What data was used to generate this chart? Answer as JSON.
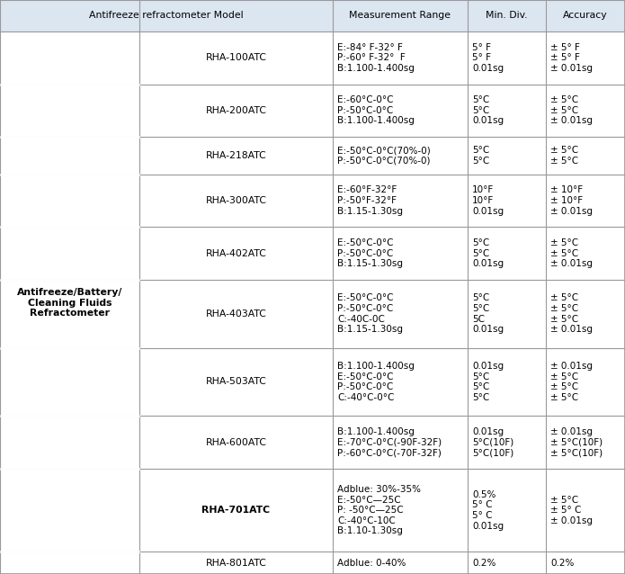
{
  "col_headers": [
    "Antifreeze refractometer Model",
    "Measurement Range",
    "Min. Div.",
    "Accuracy"
  ],
  "header_bg": "#dce6f1",
  "left_label": "Antifreeze/Battery/\nCleaning Fluids\nRefractometer",
  "rows": [
    {
      "model": "RHA-100ATC",
      "model_bold": false,
      "measurement": "E:-84° F-32° F\nP:-60° F-32°  F\nB:1.100-1.400sg",
      "min_div": "5° F\n5° F\n0.01sg",
      "accuracy": "± 5° F\n± 5° F\n± 0.01sg",
      "n_lines": 3
    },
    {
      "model": "RHA-200ATC",
      "model_bold": false,
      "measurement": "E:-60°C-0°C\nP:-50°C-0°C\nB:1.100-1.400sg",
      "min_div": "5°C\n5°C\n0.01sg",
      "accuracy": "± 5°C\n± 5°C\n± 0.01sg",
      "n_lines": 3
    },
    {
      "model": "RHA-218ATC",
      "model_bold": false,
      "measurement": "E:-50°C-0°C(70%-0)\nP:-50°C-0°C(70%-0)",
      "min_div": "5°C\n5°C",
      "accuracy": "± 5°C\n± 5°C",
      "n_lines": 2
    },
    {
      "model": "RHA-300ATC",
      "model_bold": false,
      "measurement": "E:-60°F-32°F\nP:-50°F-32°F\nB:1.15-1.30sg",
      "min_div": "10°F\n10°F\n0.01sg",
      "accuracy": "± 10°F\n± 10°F\n± 0.01sg",
      "n_lines": 3
    },
    {
      "model": "RHA-402ATC",
      "model_bold": false,
      "measurement": "E:-50°C-0°C\nP:-50°C-0°C\nB:1.15-1.30sg",
      "min_div": "5°C\n5°C\n0.01sg",
      "accuracy": "± 5°C\n± 5°C\n± 0.01sg",
      "n_lines": 3
    },
    {
      "model": "RHA-403ATC",
      "model_bold": false,
      "measurement": "E:-50°C-0°C\nP:-50°C-0°C\nC:-40C-0C\nB:1.15-1.30sg",
      "min_div": "5°C\n5°C\n5C\n0.01sg",
      "accuracy": "± 5°C\n± 5°C\n± 5°C\n± 0.01sg",
      "n_lines": 4
    },
    {
      "model": "RHA-503ATC",
      "model_bold": false,
      "measurement": "B:1.100-1.400sg\nE:-50°C-0°C\nP:-50°C-0°C\nC:-40°C-0°C",
      "min_div": "0.01sg\n5°C\n5°C\n5°C",
      "accuracy": "± 0.01sg\n± 5°C\n± 5°C\n± 5°C",
      "n_lines": 4
    },
    {
      "model": "RHA-600ATC",
      "model_bold": false,
      "measurement": "B:1.100-1.400sg\nE:-70°C-0°C(-90F-32F)\nP:-60°C-0°C(-70F-32F)",
      "min_div": "0.01sg\n5°C(10F)\n5°C(10F)",
      "accuracy": "± 0.01sg\n± 5°C(10F)\n± 5°C(10F)",
      "n_lines": 3
    },
    {
      "model": "RHA-701ATC",
      "model_bold": true,
      "measurement": "Adblue: 30%-35%\nE:-50°C—25C\nP: -50°C—25C\nC:-40°C-10C\nB:1.10-1.30sg",
      "min_div": "0.5%\n5° C\n5° C\n0.01sg",
      "accuracy": "± 5°C\n± 5° C\n± 0.01sg",
      "n_lines": 5
    },
    {
      "model": "RHA-801ATC",
      "model_bold": false,
      "measurement": "Adblue: 0-40%",
      "min_div": "0.2%",
      "accuracy": "0.2%",
      "n_lines": 1
    }
  ],
  "border_color": "#999999",
  "text_color": "#000000",
  "font_size": 7.8,
  "fig_width": 6.95,
  "fig_height": 6.38,
  "dpi": 100
}
